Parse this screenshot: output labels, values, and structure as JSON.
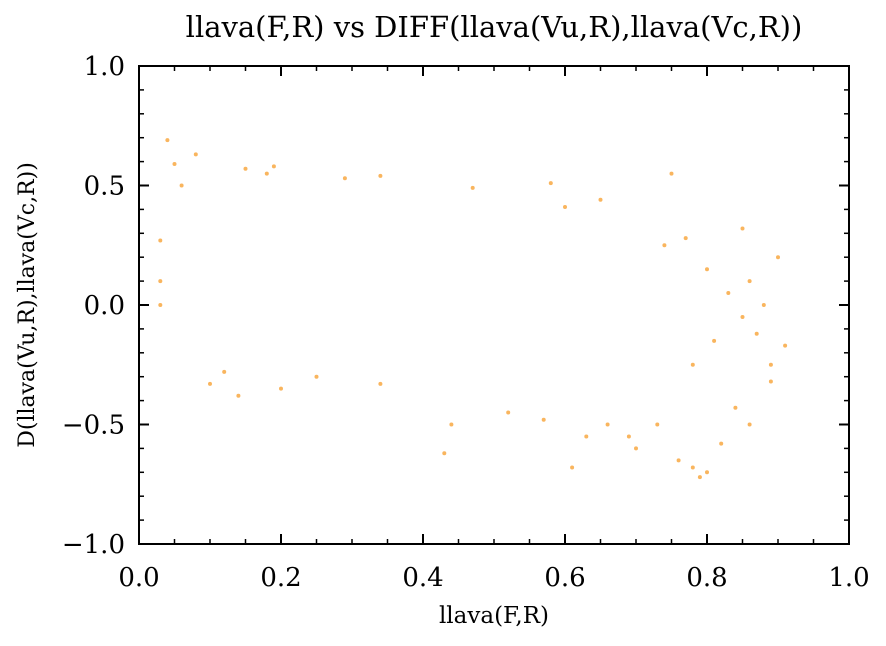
{
  "chart_data": {
    "type": "scatter",
    "title": "llava(F,R) vs DIFF(llava(Vu,R),llava(Vc,R))",
    "xlabel": "llava(F,R)",
    "ylabel": "D(llava(Vu,R),llava(Vc,R))",
    "xlim": [
      0.0,
      1.0
    ],
    "ylim": [
      -1.0,
      1.0
    ],
    "xticks": [
      "0.0",
      "0.2",
      "0.4",
      "0.6",
      "0.8",
      "1.0"
    ],
    "yticks": [
      "1.0",
      "0.5",
      "0.0",
      "−0.5",
      "−1.0"
    ],
    "grid": false,
    "point_color": "#f7961a",
    "series": [
      {
        "points": [
          [
            0.04,
            0.69
          ],
          [
            0.05,
            0.59
          ],
          [
            0.08,
            0.63
          ],
          [
            0.06,
            0.5
          ],
          [
            0.15,
            0.57
          ],
          [
            0.18,
            0.55
          ],
          [
            0.19,
            0.58
          ],
          [
            0.29,
            0.53
          ],
          [
            0.34,
            0.54
          ],
          [
            0.47,
            0.49
          ],
          [
            0.58,
            0.51
          ],
          [
            0.6,
            0.41
          ],
          [
            0.65,
            0.44
          ],
          [
            0.75,
            0.55
          ],
          [
            0.77,
            0.28
          ],
          [
            0.85,
            0.32
          ],
          [
            0.9,
            0.2
          ],
          [
            0.03,
            0.27
          ],
          [
            0.03,
            0.1
          ],
          [
            0.03,
            0.0
          ],
          [
            0.1,
            -0.33
          ],
          [
            0.12,
            -0.28
          ],
          [
            0.14,
            -0.38
          ],
          [
            0.2,
            -0.35
          ],
          [
            0.25,
            -0.3
          ],
          [
            0.34,
            -0.33
          ],
          [
            0.43,
            -0.62
          ],
          [
            0.44,
            -0.5
          ],
          [
            0.52,
            -0.45
          ],
          [
            0.57,
            -0.48
          ],
          [
            0.61,
            -0.68
          ],
          [
            0.63,
            -0.55
          ],
          [
            0.66,
            -0.5
          ],
          [
            0.69,
            -0.55
          ],
          [
            0.7,
            -0.6
          ],
          [
            0.73,
            -0.5
          ],
          [
            0.76,
            -0.65
          ],
          [
            0.78,
            -0.68
          ],
          [
            0.79,
            -0.72
          ],
          [
            0.8,
            -0.7
          ],
          [
            0.82,
            -0.58
          ],
          [
            0.84,
            -0.43
          ],
          [
            0.86,
            -0.5
          ],
          [
            0.89,
            -0.32
          ],
          [
            0.89,
            -0.25
          ],
          [
            0.91,
            -0.17
          ],
          [
            0.87,
            -0.12
          ],
          [
            0.85,
            -0.05
          ],
          [
            0.88,
            0.0
          ],
          [
            0.86,
            0.1
          ],
          [
            0.83,
            0.05
          ],
          [
            0.81,
            -0.15
          ],
          [
            0.8,
            0.15
          ],
          [
            0.78,
            -0.25
          ],
          [
            0.74,
            0.25
          ]
        ]
      }
    ]
  }
}
